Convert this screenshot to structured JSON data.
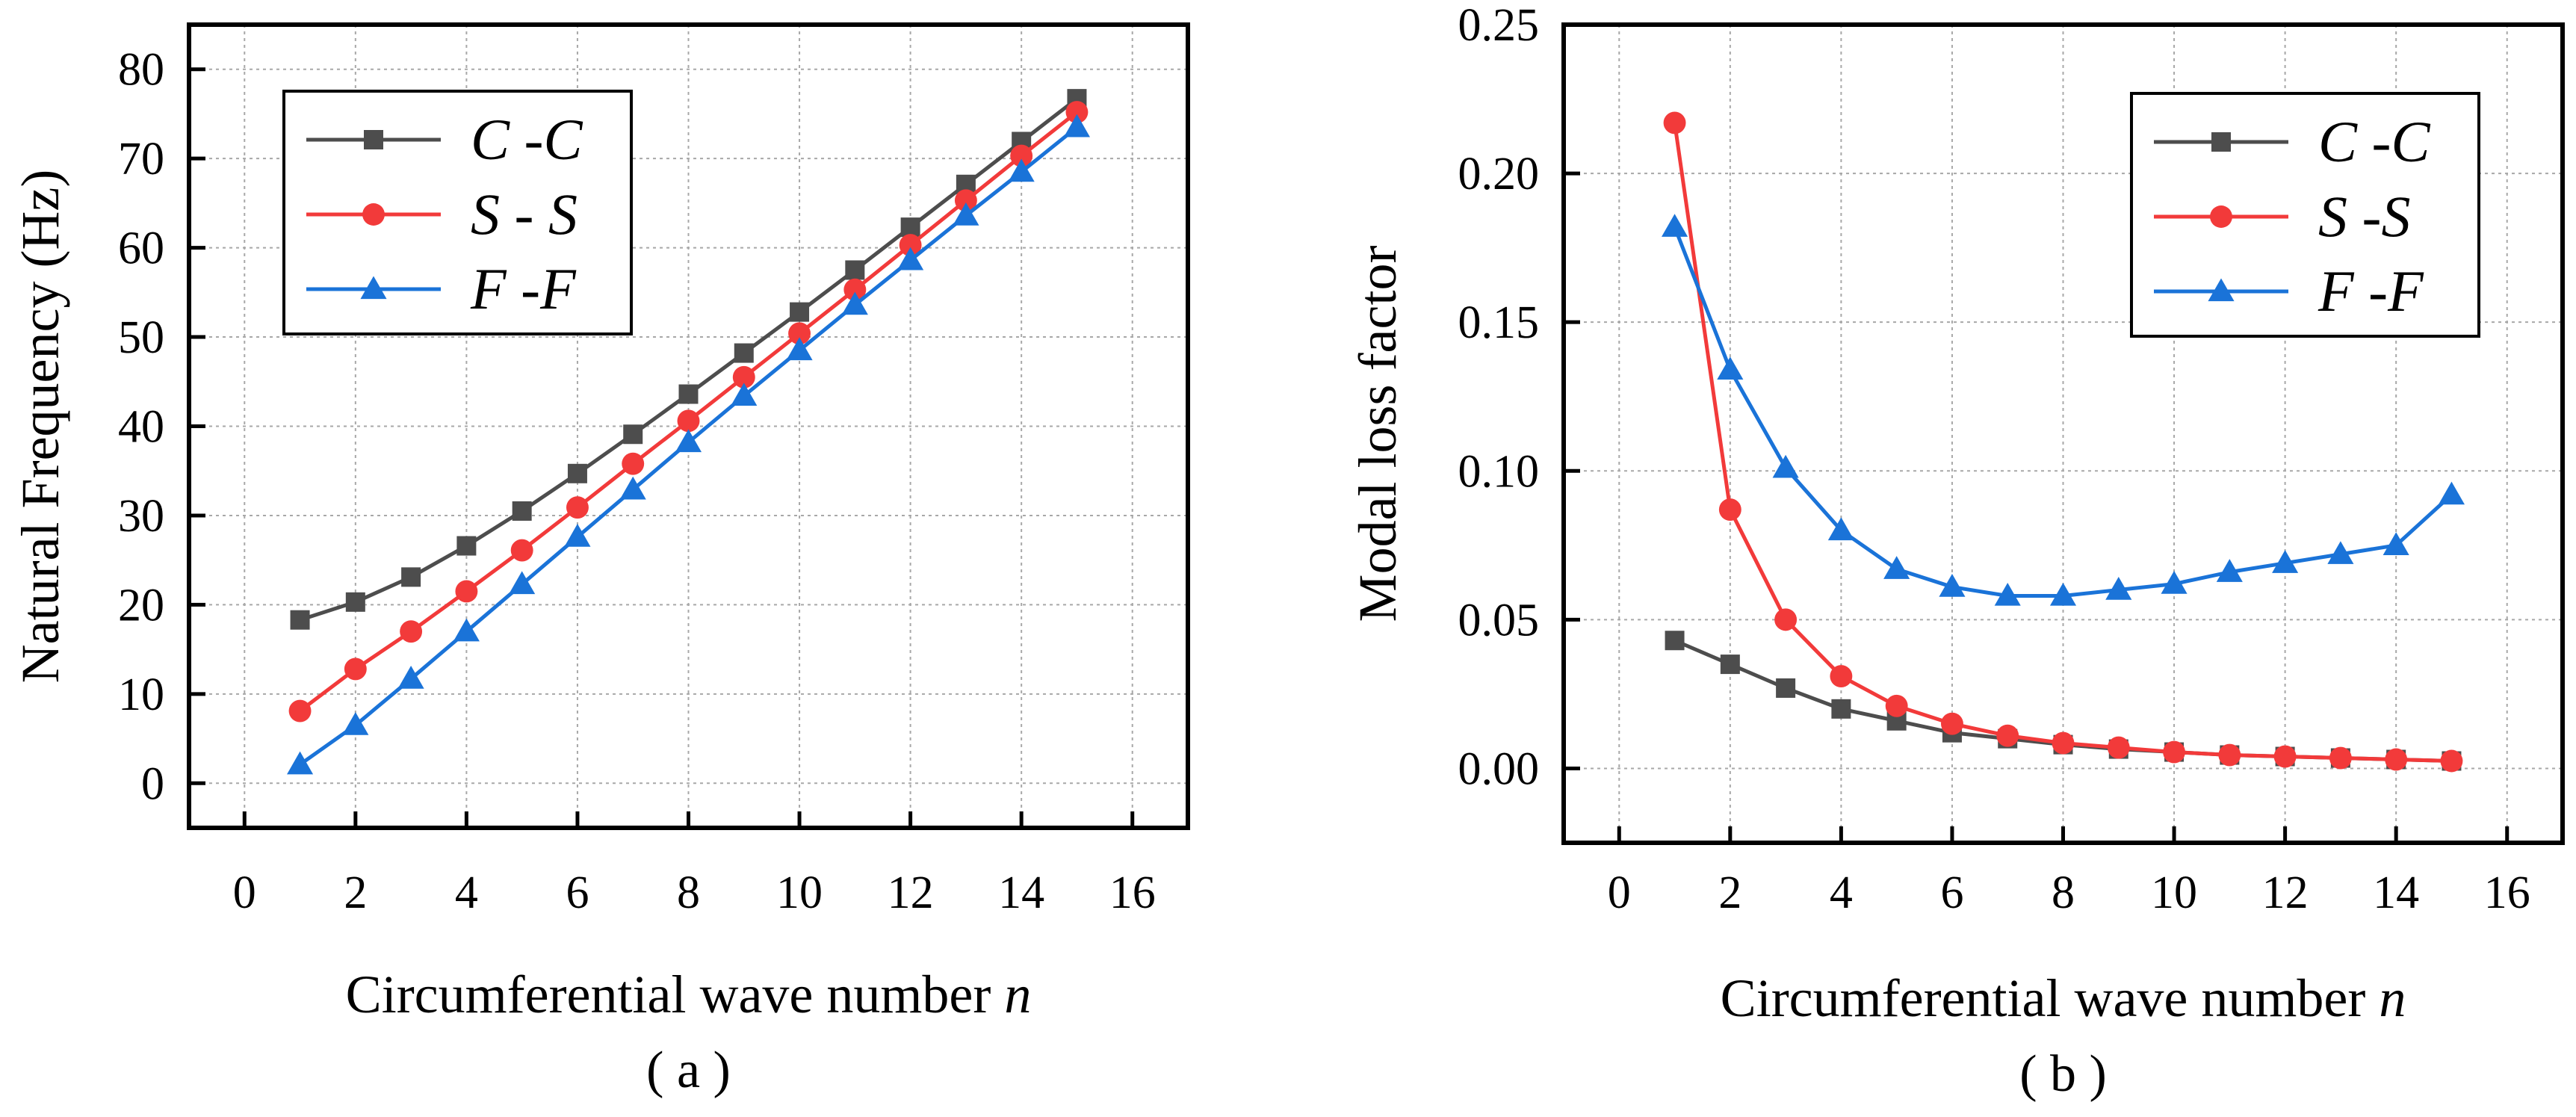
{
  "chart_data": [
    {
      "type": "line",
      "panel_label": "( a )",
      "title": "",
      "xlabel": "Circumferential wave number",
      "xlabel_symbol": "n",
      "ylabel": "Natural Frequency (Hz)",
      "xlim": [
        -1,
        17
      ],
      "ylim": [
        -5,
        85
      ],
      "xticks": [
        0,
        2,
        4,
        6,
        8,
        10,
        12,
        14,
        16
      ],
      "yticks": [
        0,
        10,
        20,
        30,
        40,
        50,
        60,
        70,
        80
      ],
      "ytick_labels": [
        "0",
        "10",
        "20",
        "30",
        "40",
        "50",
        "60",
        "70",
        "80"
      ],
      "grid": true,
      "legend_position": "top-left",
      "x": [
        1,
        2,
        3,
        4,
        5,
        6,
        7,
        8,
        9,
        10,
        11,
        12,
        13,
        14,
        15
      ],
      "series": [
        {
          "name": "C -C",
          "color": "#4d4d4d",
          "marker": "square",
          "values": [
            18.3,
            20.3,
            23.1,
            26.6,
            30.5,
            34.7,
            39.1,
            43.6,
            48.2,
            52.8,
            57.5,
            62.3,
            67.1,
            71.9,
            76.7
          ]
        },
        {
          "name": "S - S",
          "color": "#f23a3a",
          "marker": "circle",
          "values": [
            8.1,
            12.8,
            17.0,
            21.5,
            26.1,
            30.9,
            35.8,
            40.6,
            45.5,
            50.4,
            55.3,
            60.3,
            65.3,
            70.3,
            75.2
          ]
        },
        {
          "name": "F -F",
          "color": "#1a73d8",
          "marker": "triangle",
          "values": [
            2.1,
            6.5,
            11.7,
            17.0,
            22.3,
            27.6,
            32.9,
            38.2,
            43.4,
            48.5,
            53.6,
            58.6,
            63.6,
            68.5,
            73.5
          ]
        }
      ]
    },
    {
      "type": "line",
      "panel_label": "( b )",
      "title": "",
      "xlabel": "Circumferential wave number",
      "xlabel_symbol": "n",
      "ylabel": "Modal loss factor",
      "xlim": [
        -1,
        17
      ],
      "ylim": [
        -0.025,
        0.25
      ],
      "xticks": [
        0,
        2,
        4,
        6,
        8,
        10,
        12,
        14,
        16
      ],
      "yticks": [
        0,
        0.05,
        0.1,
        0.15,
        0.2,
        0.25
      ],
      "ytick_labels": [
        "0.00",
        "0.05",
        "0.10",
        "0.15",
        "0.20",
        "0.25"
      ],
      "grid": true,
      "legend_position": "top-right",
      "x": [
        1,
        2,
        3,
        4,
        5,
        6,
        7,
        8,
        9,
        10,
        11,
        12,
        13,
        14,
        15
      ],
      "series": [
        {
          "name": "C -C",
          "color": "#4d4d4d",
          "marker": "square",
          "values": [
            0.043,
            0.035,
            0.027,
            0.02,
            0.016,
            0.012,
            0.01,
            0.008,
            0.0065,
            0.0055,
            0.0045,
            0.004,
            0.0035,
            0.003,
            0.0025
          ]
        },
        {
          "name": "S -S",
          "color": "#f23a3a",
          "marker": "circle",
          "values": [
            0.217,
            0.087,
            0.05,
            0.031,
            0.021,
            0.015,
            0.011,
            0.0085,
            0.007,
            0.0055,
            0.0045,
            0.004,
            0.0035,
            0.003,
            0.0025
          ]
        },
        {
          "name": "F -F",
          "color": "#1a73d8",
          "marker": "triangle",
          "values": [
            0.182,
            0.134,
            0.101,
            0.08,
            0.067,
            0.061,
            0.058,
            0.058,
            0.06,
            0.062,
            0.066,
            0.069,
            0.072,
            0.075,
            0.092
          ]
        }
      ]
    }
  ]
}
